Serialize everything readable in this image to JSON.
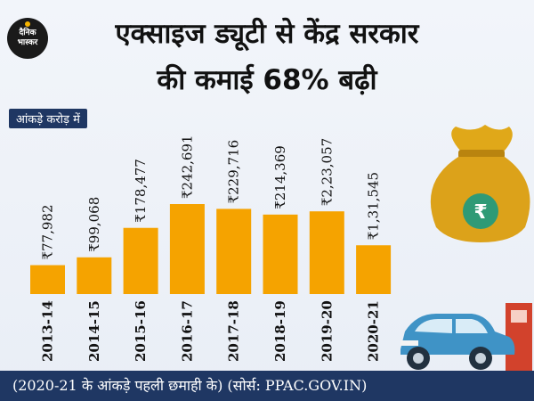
{
  "header": {
    "logo_line1": "दैनिक",
    "logo_line2": "भास्कर",
    "title_line1": "एक्साइज ड्यूटी से केंद्र सरकार",
    "title_line2": "की कमाई 68% बढ़ी"
  },
  "chart_data": {
    "type": "bar",
    "unit_label": "आंकड़े करोड़ में",
    "categories": [
      "2013-14",
      "2014-15",
      "2015-16",
      "2016-17",
      "2017-18",
      "2018-19",
      "2019-20",
      "2020-21"
    ],
    "values": [
      77982,
      99068,
      178477,
      242691,
      229716,
      214369,
      223057,
      131545
    ],
    "value_labels": [
      "₹77,982",
      "₹99,068",
      "₹178,477",
      "₹242,691",
      "₹229,716",
      "₹214,369",
      "₹2,23,057",
      "₹1,31,545"
    ],
    "ylim": [
      0,
      242691
    ],
    "bar_color": "#f5a300",
    "title": "एक्साइज ड्यूटी से केंद्र सरकार की कमाई 68% बढ़ी"
  },
  "icons": {
    "money_bag": "money-bag-icon",
    "rupee_symbol": "₹",
    "car": "car-icon",
    "fuel_pump": "fuel-pump-icon"
  },
  "footer": {
    "note": "(2020-21 के आंकड़े पहली छमाही के)",
    "source": "(सोर्स: PPAC.GOV.IN)"
  },
  "colors": {
    "navy": "#1f3763",
    "bar": "#f5a300",
    "bag_gold": "#d9a21b",
    "rupee_green": "#2f9a76",
    "car_blue": "#3f93c6",
    "pump_red": "#d2422c"
  }
}
